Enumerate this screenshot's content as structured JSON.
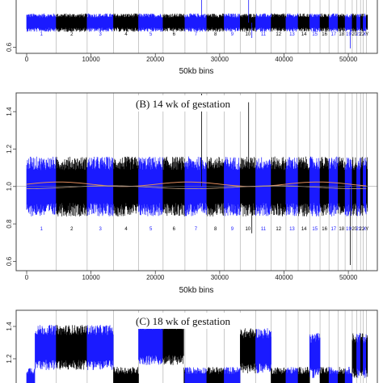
{
  "colors": {
    "chr_odd": "#1a1aff",
    "chr_even": "#000000",
    "trend": "#e08a5a",
    "divider": "#bbbbbb"
  },
  "chart_data": [
    {
      "type": "line",
      "panel_title": "",
      "xlabel": "50kb bins",
      "xlim": [
        0,
        53000
      ],
      "xticks": [
        "0",
        "10000",
        "20000",
        "30000",
        "40000",
        "50000"
      ],
      "xtick_values": [
        0,
        10000,
        20000,
        30000,
        40000,
        50000
      ],
      "ylim": [
        0.5,
        1.5
      ],
      "yticks": [
        "0.6"
      ],
      "ytick_values": [
        0.6
      ],
      "chromosomes": [
        "1",
        "2",
        "3",
        "4",
        "5",
        "6",
        "7",
        "8",
        "9",
        "10",
        "11",
        "12",
        "13",
        "14",
        "15",
        "16",
        "17",
        "18",
        "19",
        "20",
        "21",
        "22",
        "X",
        "Y"
      ],
      "chromosome_boundaries": [
        0,
        4600,
        9400,
        13500,
        17400,
        21200,
        24600,
        28000,
        30700,
        33200,
        35600,
        38000,
        40300,
        42200,
        44000,
        45600,
        47000,
        48400,
        49500,
        50600,
        51300,
        51900,
        52300,
        52800
      ],
      "baseline": 1.0,
      "noise_amplitude": 0.15,
      "label_y": 0.79
    },
    {
      "type": "line",
      "panel_title": "(B)  14 wk of gestation",
      "xlabel": "50kb bins",
      "xlim": [
        0,
        53000
      ],
      "xticks": [
        "0",
        "10000",
        "20000",
        "30000",
        "40000",
        "50000"
      ],
      "xtick_values": [
        0,
        10000,
        20000,
        30000,
        40000,
        50000
      ],
      "ylim": [
        0.55,
        1.5
      ],
      "yticks": [
        "0.6",
        "0.8",
        "1.0",
        "1.2",
        "1.4"
      ],
      "ytick_values": [
        0.6,
        0.8,
        1.0,
        1.2,
        1.4
      ],
      "chromosomes": [
        "1",
        "2",
        "3",
        "4",
        "5",
        "6",
        "7",
        "8",
        "9",
        "10",
        "11",
        "12",
        "13",
        "14",
        "15",
        "16",
        "17",
        "18",
        "19",
        "20",
        "21",
        "22",
        "X",
        "Y"
      ],
      "chromosome_boundaries": [
        0,
        4600,
        9400,
        13500,
        17400,
        21200,
        24600,
        28000,
        30700,
        33200,
        35600,
        38000,
        40300,
        42200,
        44000,
        45600,
        47000,
        48400,
        49500,
        50600,
        51300,
        51900,
        52300,
        52800
      ],
      "baseline": 1.0,
      "noise_amplitude": 0.16,
      "trend_amplitude": 0.02,
      "label_y": 0.765
    },
    {
      "type": "line",
      "panel_title": "(C)  18 wk of gestation",
      "xlabel": "",
      "xlim": [
        0,
        53000
      ],
      "xticks": [],
      "xtick_values": [],
      "ylim": [
        1.0,
        1.5
      ],
      "yticks": [
        "1.2",
        "1.4"
      ],
      "ytick_values": [
        1.2,
        1.4
      ],
      "chromosome_boundaries": [
        0,
        4600,
        9400,
        13500,
        17400,
        21200,
        24600,
        28000,
        30700,
        33200,
        35600,
        38000,
        40300,
        42200,
        44000,
        45600,
        47000,
        48400,
        49500,
        50600,
        51300,
        51900,
        52300,
        52800
      ],
      "elevated_regions": [
        [
          1300,
          13500,
          1.27
        ],
        [
          17400,
          24400,
          1.3
        ],
        [
          33200,
          38000,
          1.25
        ],
        [
          44000,
          45600,
          1.22
        ],
        [
          50600,
          53000,
          1.22
        ]
      ],
      "baseline": 1.05,
      "noise_amplitude": 0.1
    }
  ]
}
